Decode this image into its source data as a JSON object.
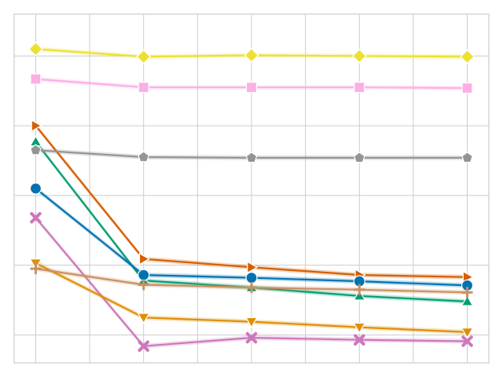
{
  "chart_data": {
    "type": "line",
    "title": "",
    "xlabel": "",
    "ylabel": "",
    "x": [
      0,
      1,
      2,
      3,
      4
    ],
    "xlim": [
      -0.2,
      4.2
    ],
    "ylim": [
      0.04,
      0.54
    ],
    "grid": true,
    "legend": "none",
    "x_grid_minor": true,
    "y_grid": [
      0.08,
      0.18,
      0.28,
      0.38,
      0.48
    ],
    "series": [
      {
        "color": "#ece133",
        "marker": "diamond",
        "values": [
          0.49,
          0.479,
          0.481,
          0.48,
          0.479
        ]
      },
      {
        "color": "#fbafe4",
        "marker": "square",
        "values": [
          0.447,
          0.435,
          0.435,
          0.435,
          0.434
        ]
      },
      {
        "color": "#d55e00",
        "marker": "triangle-right",
        "values": [
          0.38,
          0.189,
          0.177,
          0.166,
          0.163
        ]
      },
      {
        "color": "#029e73",
        "marker": "triangle-up",
        "values": [
          0.357,
          0.158,
          0.148,
          0.136,
          0.128
        ]
      },
      {
        "color": "#949494",
        "marker": "pentagon",
        "values": [
          0.345,
          0.335,
          0.334,
          0.334,
          0.334
        ]
      },
      {
        "color": "#0173b2",
        "marker": "circle",
        "values": [
          0.29,
          0.166,
          0.162,
          0.157,
          0.151
        ]
      },
      {
        "color": "#cc78bc",
        "marker": "x",
        "values": [
          0.248,
          0.064,
          0.076,
          0.073,
          0.071
        ]
      },
      {
        "color": "#de8f05",
        "marker": "triangle-down",
        "values": [
          0.183,
          0.105,
          0.099,
          0.091,
          0.084
        ]
      },
      {
        "color": "#ca9161",
        "marker": "plus",
        "values": [
          0.175,
          0.152,
          0.148,
          0.145,
          0.141
        ]
      }
    ]
  }
}
